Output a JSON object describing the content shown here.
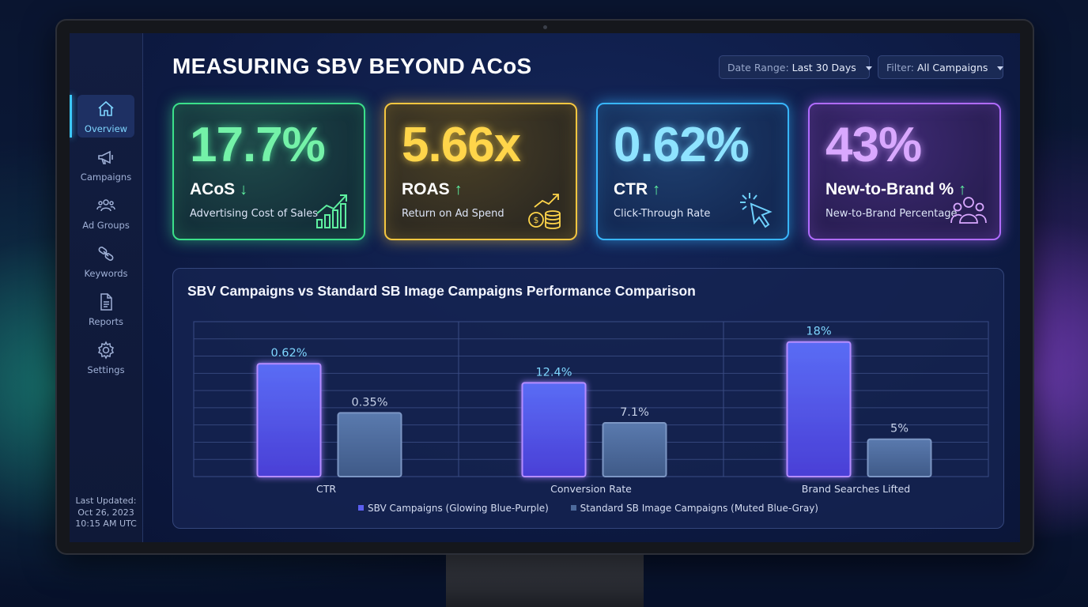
{
  "dashboard": {
    "title": "MEASURING SBV BEYOND ACoS",
    "date_range": {
      "label": "Date Range:",
      "value": "Last 30 Days"
    },
    "filter": {
      "label": "Filter:",
      "value": "All Campaigns"
    }
  },
  "sidebar": {
    "items": [
      {
        "label": "Overview",
        "icon": "home-icon",
        "active": true
      },
      {
        "label": "Campaigns",
        "icon": "megaphone-icon",
        "active": false
      },
      {
        "label": "Ad Groups",
        "icon": "users-icon",
        "active": false
      },
      {
        "label": "Keywords",
        "icon": "link-icon",
        "active": false
      },
      {
        "label": "Reports",
        "icon": "document-icon",
        "active": false
      },
      {
        "label": "Settings",
        "icon": "gear-icon",
        "active": false
      }
    ],
    "last_updated": {
      "line1": "Last Updated:",
      "line2": "Oct 26, 2023",
      "line3": "10:15 AM UTC"
    }
  },
  "kpis": [
    {
      "value": "17.7%",
      "name": "ACoS",
      "trend": "↓",
      "description": "Advertising Cost of Sales",
      "icon": "growth-chart-icon",
      "color": "#3be08a"
    },
    {
      "value": "5.66x",
      "name": "ROAS",
      "trend": "↑",
      "description": "Return on Ad Spend",
      "icon": "coins-icon",
      "color": "#f5c640"
    },
    {
      "value": "0.62%",
      "name": "CTR",
      "trend": "↑",
      "description": "Click-Through Rate",
      "icon": "cursor-click-icon",
      "color": "#38b6ff"
    },
    {
      "value": "43%",
      "name": "New-to-Brand %",
      "trend": "↑",
      "description": "New-to-Brand Percentage",
      "icon": "group-icon",
      "color": "#b06bff"
    }
  ],
  "chart_data": {
    "type": "bar",
    "title": "SBV Campaigns vs Standard SB Image Campaigns Performance Comparison",
    "categories": [
      "CTR",
      "Conversion Rate",
      "Brand Searches Lifted"
    ],
    "series": [
      {
        "name": "SBV Campaigns (Glowing Blue-Purple)",
        "values": [
          0.62,
          12.4,
          18
        ],
        "labels": [
          "0.62%",
          "12.4%",
          "18%"
        ],
        "color": "#5b5ff0"
      },
      {
        "name": "Standard SB Image Campaigns (Muted Blue-Gray)",
        "values": [
          0.35,
          7.1,
          5
        ],
        "labels": [
          "0.35%",
          "7.1%",
          "5%"
        ],
        "color": "#4d6a9c"
      }
    ],
    "legend_position": "bottom",
    "grid": true
  }
}
